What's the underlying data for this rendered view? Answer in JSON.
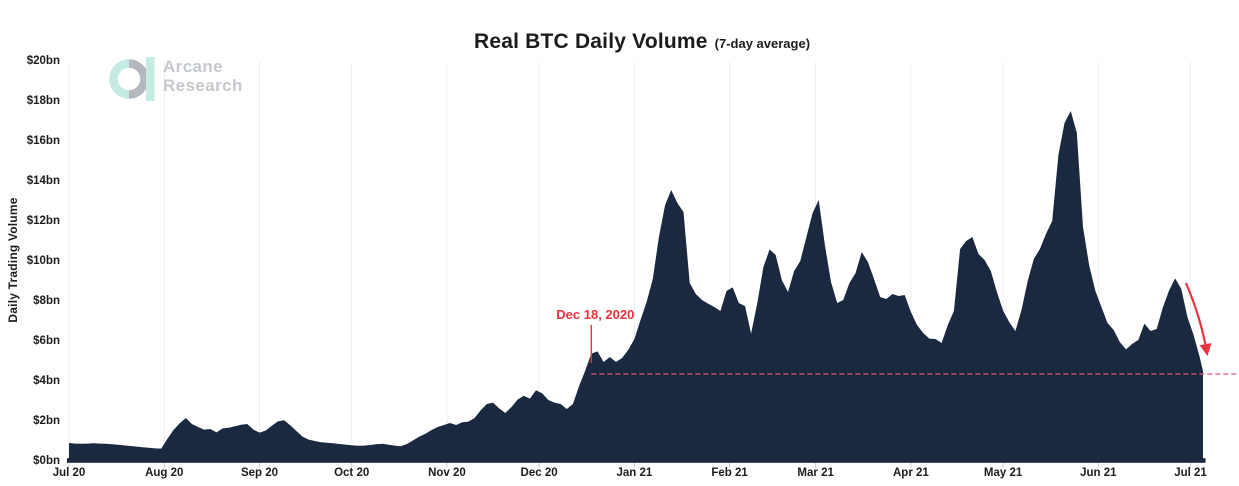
{
  "header": {
    "title": "Real BTC Daily Volume",
    "subtitle": "(7-day average)"
  },
  "logo": {
    "line1": "Arcane",
    "line2": "Research",
    "teal": "#c4ebe3",
    "gray": "#b4b8be",
    "text_color": "#c5c9ce"
  },
  "y_axis": {
    "title": "Daily Trading Volume",
    "tick_labels": [
      "$0bn",
      "$2bn",
      "$4bn",
      "$6bn",
      "$8bn",
      "$10bn",
      "$12bn",
      "$14bn",
      "$16bn",
      "$18bn",
      "$20bn"
    ],
    "tick_values_bn": [
      0,
      2,
      4,
      6,
      8,
      10,
      12,
      14,
      16,
      18,
      20
    ]
  },
  "x_axis": {
    "tick_labels": [
      "Jul 20",
      "Aug 20",
      "Sep 20",
      "Oct 20",
      "Nov 20",
      "Dec 20",
      "Jan 21",
      "Feb 21",
      "Mar 21",
      "Apr 21",
      "May 21",
      "Jun 21",
      "Jul 21"
    ],
    "tick_day_offsets": [
      0,
      31,
      62,
      92,
      123,
      153,
      184,
      215,
      243,
      274,
      304,
      335,
      365
    ]
  },
  "annotation": {
    "label": "Dec 18, 2020",
    "day_offset": 170
  },
  "reference_line": {
    "value_bn": 4.35,
    "style": "dashed"
  },
  "colors": {
    "area_fill": "#1b2940",
    "accent_red": "#e8333f",
    "dashed_pink": "#d85875",
    "grid": "#ececec",
    "tick": "#c8c8c8",
    "text_dark": "#1c1c1c"
  },
  "chart_data": {
    "type": "area",
    "title": "Real BTC Daily Volume (7-day average)",
    "ylabel": "Daily Trading Volume",
    "ylim": [
      0,
      20
    ],
    "x_start_label": "Jul 20",
    "x_end_label": "Jul 21",
    "x_step_days": 2,
    "legend": "none",
    "grid": "faint-vertical-month-lines",
    "values_bn": [
      0.9,
      0.87,
      0.86,
      0.87,
      0.89,
      0.87,
      0.86,
      0.84,
      0.81,
      0.78,
      0.75,
      0.72,
      0.69,
      0.66,
      0.63,
      0.62,
      1.1,
      1.55,
      1.88,
      2.15,
      1.85,
      1.7,
      1.57,
      1.6,
      1.43,
      1.63,
      1.66,
      1.74,
      1.81,
      1.85,
      1.57,
      1.42,
      1.52,
      1.76,
      1.98,
      2.04,
      1.79,
      1.5,
      1.22,
      1.07,
      1.0,
      0.94,
      0.91,
      0.89,
      0.85,
      0.82,
      0.79,
      0.76,
      0.77,
      0.8,
      0.84,
      0.86,
      0.81,
      0.77,
      0.74,
      0.85,
      1.03,
      1.22,
      1.36,
      1.55,
      1.7,
      1.8,
      1.9,
      1.8,
      1.94,
      1.97,
      2.15,
      2.54,
      2.85,
      2.92,
      2.63,
      2.4,
      2.7,
      3.07,
      3.26,
      3.12,
      3.54,
      3.38,
      3.05,
      2.92,
      2.85,
      2.6,
      2.85,
      3.75,
      4.52,
      5.37,
      5.48,
      4.95,
      5.2,
      4.95,
      5.15,
      5.55,
      6.1,
      7.05,
      7.95,
      9.1,
      11.2,
      12.8,
      13.55,
      12.9,
      12.45,
      8.9,
      8.35,
      8.05,
      7.87,
      7.7,
      7.5,
      8.5,
      8.68,
      7.9,
      7.75,
      6.37,
      7.9,
      9.7,
      10.58,
      10.3,
      9.05,
      8.45,
      9.5,
      10.0,
      11.2,
      12.4,
      13.05,
      10.8,
      8.95,
      7.9,
      8.05,
      8.9,
      9.4,
      10.45,
      9.95,
      9.1,
      8.2,
      8.1,
      8.35,
      8.25,
      8.3,
      7.45,
      6.8,
      6.4,
      6.12,
      6.1,
      5.9,
      6.8,
      7.5,
      10.6,
      11.0,
      11.2,
      10.35,
      10.05,
      9.5,
      8.45,
      7.52,
      6.95,
      6.5,
      7.55,
      9.0,
      10.1,
      10.6,
      11.37,
      12.0,
      15.3,
      16.9,
      17.5,
      16.42,
      11.7,
      9.8,
      8.53,
      7.7,
      6.9,
      6.55,
      5.95,
      5.58,
      5.85,
      6.05,
      6.87,
      6.5,
      6.6,
      7.67,
      8.52,
      9.13,
      8.6,
      7.2,
      6.3,
      5.2,
      4.5
    ]
  }
}
